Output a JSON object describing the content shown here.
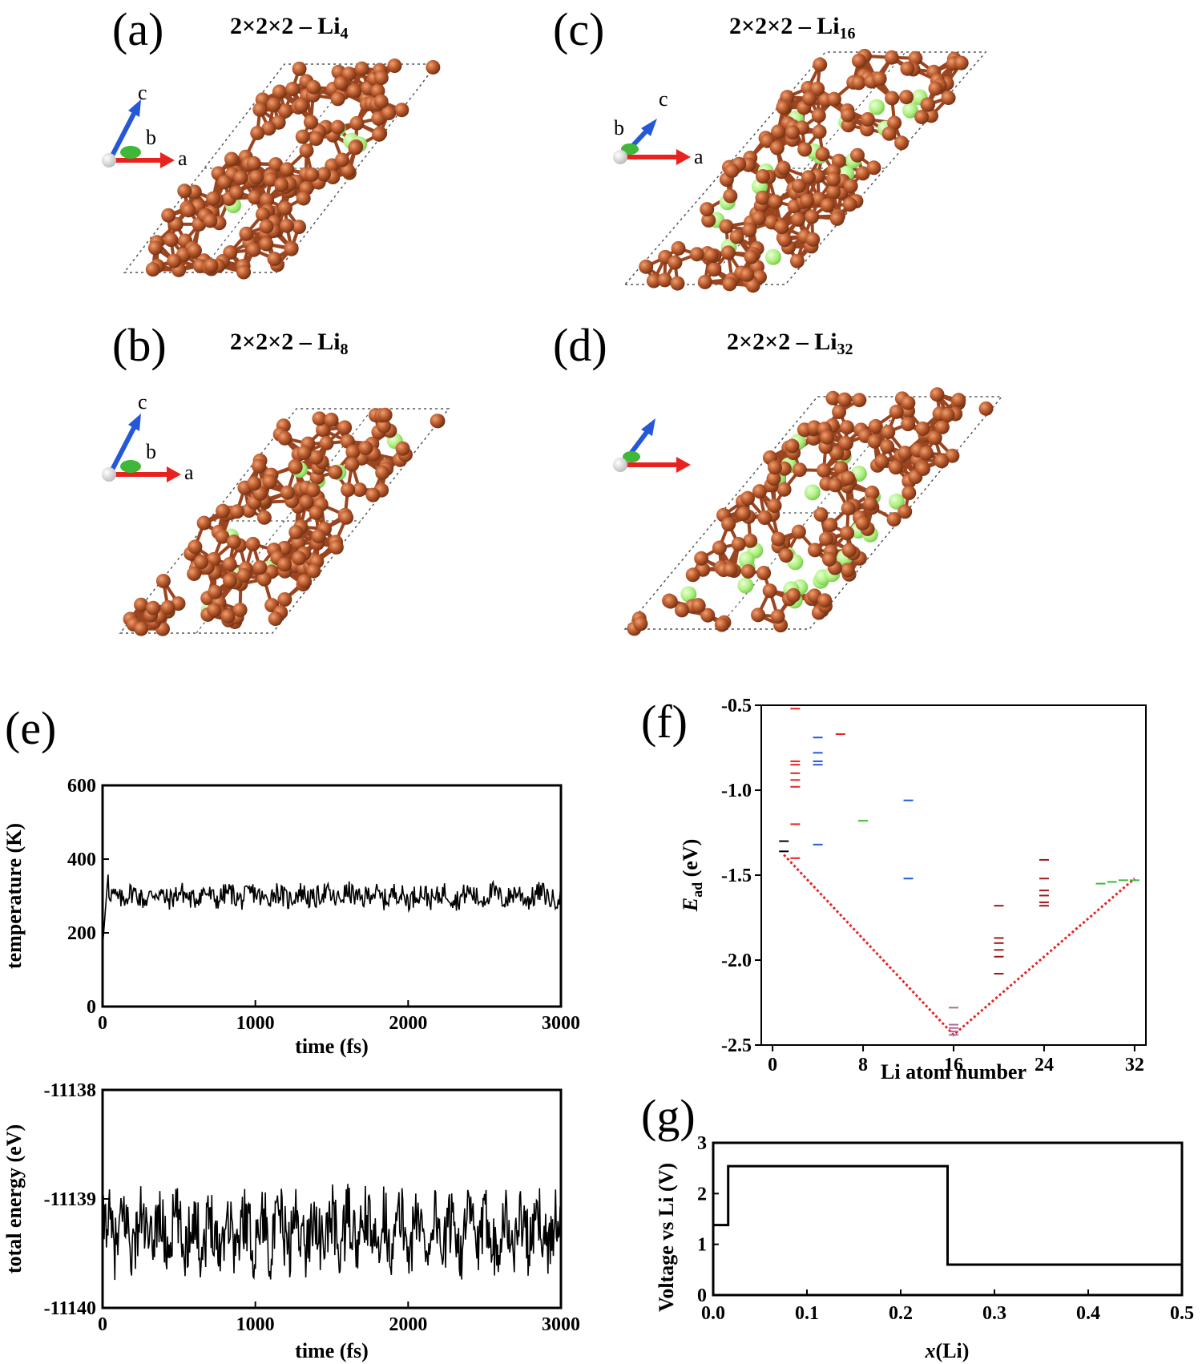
{
  "structures": [
    {
      "id": "a",
      "label": "(a)",
      "formula_prefix": "2×2×2 – Li",
      "formula_sub": "4",
      "axes": {
        "c": "c",
        "b": "b",
        "a": "a"
      },
      "li_count": 4
    },
    {
      "id": "b",
      "label": "(b)",
      "formula_prefix": "2×2×2 – Li",
      "formula_sub": "8",
      "axes": {
        "c": "c",
        "b": "b",
        "a": "a"
      },
      "li_count": 8
    },
    {
      "id": "c",
      "label": "(c)",
      "formula_prefix": "2×2×2 – Li",
      "formula_sub": "16",
      "axes": {
        "c": "c",
        "b": "b",
        "a": "a"
      },
      "li_count": 16
    },
    {
      "id": "d",
      "label": "(d)",
      "formula_prefix": "2×2×2 – Li",
      "formula_sub": "32",
      "axes": {
        "c": "",
        "b": "",
        "a": ""
      },
      "li_count": 32
    }
  ],
  "colors": {
    "carbon": "#b5562b",
    "carbon_light": "#e08a55",
    "lithium": "#aef07f",
    "axis_a": "#e8231f",
    "axis_c": "#2458d6",
    "axis_b": "#3fb83a",
    "dotted_red": "#e8231f"
  },
  "chart_data": [
    {
      "id": "e-top",
      "panel_label": "(e)",
      "type": "line",
      "xlabel": "time (fs)",
      "ylabel": "temperature (K)",
      "xlim": [
        0,
        3000
      ],
      "ylim": [
        0,
        600
      ],
      "xticks": [
        0,
        1000,
        2000,
        3000
      ],
      "yticks": [
        0,
        200,
        400,
        600
      ],
      "series": [
        {
          "mean": 300,
          "amplitude": 30,
          "start_value": 160
        }
      ]
    },
    {
      "id": "e-bottom",
      "type": "line",
      "xlabel": "time (fs)",
      "ylabel": "total energy (eV)",
      "xlim": [
        0,
        3000
      ],
      "ylim": [
        -11140,
        -11138
      ],
      "xticks": [
        0,
        1000,
        2000,
        3000
      ],
      "yticks": [
        -11140,
        -11139,
        -11138
      ],
      "series": [
        {
          "mean": -11139.3,
          "amplitude": 0.3
        }
      ]
    },
    {
      "id": "f",
      "panel_label": "(f)",
      "type": "scatter",
      "xlabel": "Li atom number",
      "ylabel_main": "E",
      "ylabel_sub": "ad",
      "ylabel_unit": " (eV)",
      "xlim": [
        -1,
        33
      ],
      "ylim": [
        -2.5,
        -0.5
      ],
      "xticks": [
        0,
        8,
        16,
        24,
        32
      ],
      "yticks": [
        -0.5,
        -1.0,
        -1.5,
        -2.0,
        -2.5
      ],
      "ytick_labels": [
        "-0.5",
        "-1.0",
        "-1.5",
        "-2.0",
        "-2.5"
      ],
      "levels": [
        {
          "x": 1,
          "color": "#000000",
          "values": [
            -1.3,
            -1.36
          ]
        },
        {
          "x": 2,
          "color": "#e8231f",
          "values": [
            -0.52,
            -0.83,
            -0.85,
            -0.9,
            -0.94,
            -0.98,
            -1.2,
            -1.4
          ]
        },
        {
          "x": 4,
          "color": "#2458d6",
          "values": [
            -0.69,
            -0.78,
            -0.83,
            -0.85,
            -1.32
          ]
        },
        {
          "x": 6,
          "color": "#e8231f",
          "values": [
            -0.67
          ]
        },
        {
          "x": 8,
          "color": "#3fb83a",
          "values": [
            -1.18
          ]
        },
        {
          "x": 12,
          "color": "#2458d6",
          "values": [
            -1.06,
            -1.52
          ]
        },
        {
          "x": 16,
          "color": "#b06a9a",
          "values": [
            -2.28,
            -2.38,
            -2.4,
            -2.42,
            -2.44
          ]
        },
        {
          "x": 20,
          "color": "#a01818",
          "values": [
            -1.68,
            -1.87,
            -1.9,
            -1.94,
            -1.98,
            -2.08
          ]
        },
        {
          "x": 24,
          "color": "#a01818",
          "values": [
            -1.41,
            -1.52,
            -1.59,
            -1.62,
            -1.66,
            -1.68
          ]
        },
        {
          "x": 29,
          "color": "#3fb83a",
          "values": [
            -1.55
          ]
        },
        {
          "x": 30,
          "color": "#3fb83a",
          "values": [
            -1.54
          ]
        },
        {
          "x": 31,
          "color": "#3fb83a",
          "values": [
            -1.53
          ]
        },
        {
          "x": 32,
          "color": "#3fb83a",
          "values": [
            -1.53
          ]
        }
      ],
      "hull": [
        [
          1,
          -1.38
        ],
        [
          16,
          -2.44
        ],
        [
          32,
          -1.52
        ]
      ]
    },
    {
      "id": "g",
      "panel_label": "(g)",
      "type": "line",
      "xlabel_main": "x",
      "xlabel_rest": "(Li)",
      "ylabel": "Voltage vs Li (V)",
      "xlim": [
        0,
        0.5
      ],
      "ylim": [
        0,
        3
      ],
      "xticks": [
        0.0,
        0.1,
        0.2,
        0.3,
        0.4,
        0.5
      ],
      "xtick_labels": [
        "0.0",
        "0.1",
        "0.2",
        "0.3",
        "0.4",
        "0.5"
      ],
      "yticks": [
        0,
        1,
        2,
        3
      ],
      "series": [
        {
          "x": [
            0,
            0.016,
            0.016,
            0.25,
            0.25,
            0.5
          ],
          "y": [
            1.38,
            1.38,
            2.54,
            2.54,
            0.6,
            0.6
          ]
        }
      ]
    }
  ]
}
